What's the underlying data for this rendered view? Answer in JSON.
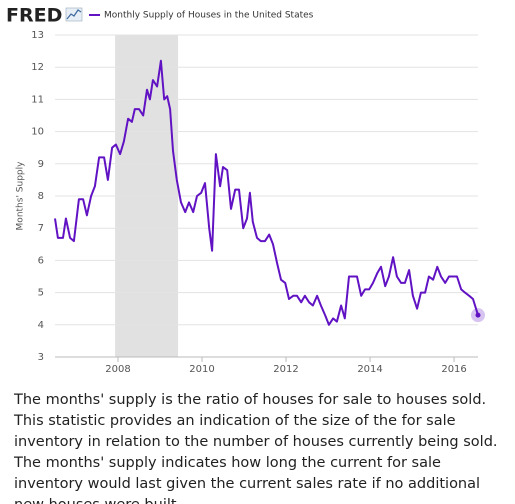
{
  "brand": "FRED",
  "chart_data": {
    "type": "line",
    "y_label": "Months' Supply",
    "x": [
      2006.5,
      2006.57,
      2006.69,
      2006.76,
      2006.86,
      2006.95,
      2007.07,
      2007.17,
      2007.26,
      2007.36,
      2007.45,
      2007.55,
      2007.67,
      2007.76,
      2007.86,
      2007.95,
      2008.05,
      2008.14,
      2008.24,
      2008.33,
      2008.4,
      2008.5,
      2008.6,
      2008.69,
      2008.76,
      2008.83,
      2008.93,
      2009.02,
      2009.1,
      2009.17,
      2009.24,
      2009.31,
      2009.4,
      2009.5,
      2009.6,
      2009.69,
      2009.79,
      2009.88,
      2009.98,
      2010.07,
      2010.17,
      2010.24,
      2010.33,
      2010.43,
      2010.5,
      2010.6,
      2010.69,
      2010.79,
      2010.88,
      2010.98,
      2011.07,
      2011.14,
      2011.21,
      2011.31,
      2011.4,
      2011.5,
      2011.6,
      2011.69,
      2011.79,
      2011.88,
      2011.98,
      2012.07,
      2012.17,
      2012.26,
      2012.36,
      2012.45,
      2012.55,
      2012.64,
      2012.74,
      2012.83,
      2012.93,
      2013.02,
      2013.12,
      2013.21,
      2013.31,
      2013.4,
      2013.5,
      2013.6,
      2013.69,
      2013.79,
      2013.88,
      2013.98,
      2014.07,
      2014.17,
      2014.26,
      2014.36,
      2014.45,
      2014.55,
      2014.64,
      2014.74,
      2014.83,
      2014.93,
      2015.02,
      2015.12,
      2015.21,
      2015.31,
      2015.4,
      2015.5,
      2015.6,
      2015.69,
      2015.79,
      2015.88,
      2015.98,
      2016.07,
      2016.17,
      2016.26,
      2016.36,
      2016.45,
      2016.57
    ],
    "series": [
      {
        "name": "Monthly Supply of Houses in the United States",
        "color": "#6113c4",
        "values": [
          7.3,
          6.7,
          6.7,
          7.3,
          6.7,
          6.6,
          7.9,
          7.9,
          7.4,
          8.0,
          8.3,
          9.2,
          9.2,
          8.5,
          9.5,
          9.6,
          9.3,
          9.7,
          10.4,
          10.3,
          10.7,
          10.7,
          10.5,
          11.3,
          11.0,
          11.6,
          11.4,
          12.2,
          11.0,
          11.1,
          10.7,
          9.4,
          8.5,
          7.8,
          7.5,
          7.8,
          7.5,
          8.0,
          8.1,
          8.4,
          7.0,
          6.3,
          9.3,
          8.3,
          8.9,
          8.8,
          7.6,
          8.2,
          8.2,
          7.0,
          7.3,
          8.1,
          7.2,
          6.7,
          6.6,
          6.6,
          6.8,
          6.5,
          5.9,
          5.4,
          5.3,
          4.8,
          4.9,
          4.9,
          4.7,
          4.9,
          4.7,
          4.6,
          4.9,
          4.6,
          4.3,
          4.0,
          4.2,
          4.1,
          4.6,
          4.2,
          5.5,
          5.5,
          5.5,
          4.9,
          5.1,
          5.1,
          5.3,
          5.6,
          5.8,
          5.2,
          5.5,
          6.1,
          5.5,
          5.3,
          5.3,
          5.7,
          4.9,
          4.5,
          5.0,
          5.0,
          5.5,
          5.4,
          5.8,
          5.5,
          5.3,
          5.5,
          5.5,
          5.5,
          5.1,
          5.0,
          4.9,
          4.8,
          4.3
        ]
      }
    ],
    "recession": [
      2007.93,
      2009.43
    ],
    "xlim": [
      2006.5,
      2016.57
    ],
    "xticks": [
      2008,
      2010,
      2012,
      2014,
      2016
    ],
    "ylim": [
      3,
      13
    ],
    "yticks": [
      3,
      4,
      5,
      6,
      7,
      8,
      9,
      10,
      11,
      12,
      13
    ],
    "grid": true
  },
  "description": "The months' supply is the ratio of houses for sale to houses sold. This statistic provides an indication of the size of the for sale inventory in relation to the number of houses currently being sold. The months' supply indicates how long the current for sale inventory would last given the current sales rate if no additional new houses were built."
}
